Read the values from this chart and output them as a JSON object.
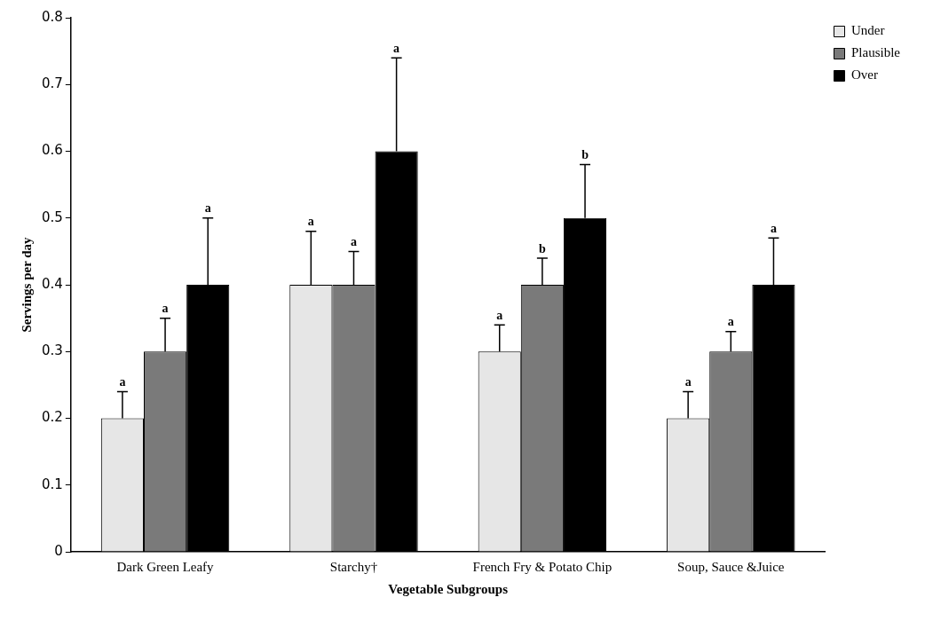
{
  "chart_data": {
    "type": "bar",
    "xlabel": "Vegetable Subgroups",
    "ylabel": "Servings per day",
    "categories": [
      "Dark Green Leafy",
      "Starchy†",
      "French Fry & Potato Chip",
      "Soup, Sauce &Juice"
    ],
    "series": [
      {
        "name": "Under",
        "color": "#e6e6e6",
        "values": [
          0.2,
          0.4,
          0.3,
          0.2
        ],
        "errors": [
          [
            0.2,
            0.24
          ],
          [
            0.4,
            0.48
          ],
          [
            0.3,
            0.34
          ],
          [
            0.2,
            0.24
          ]
        ]
      },
      {
        "name": "Plausible",
        "color": "#7a7a7a",
        "values": [
          0.3,
          0.4,
          0.4,
          0.3
        ],
        "errors": [
          [
            0.3,
            0.35
          ],
          [
            0.4,
            0.45
          ],
          [
            0.4,
            0.44
          ],
          [
            0.3,
            0.33
          ]
        ]
      },
      {
        "name": "Over",
        "color": "#000000",
        "values": [
          0.4,
          0.6,
          0.5,
          0.4
        ],
        "errors": [
          [
            0.4,
            0.5
          ],
          [
            0.6,
            0.74
          ],
          [
            0.5,
            0.58
          ],
          [
            0.4,
            0.47
          ]
        ]
      }
    ],
    "annotations": [
      "a",
      "a",
      "a",
      "a",
      "a",
      "a",
      "a",
      "b",
      "b",
      "a",
      "a",
      "a"
    ],
    "ylim": [
      0,
      0.8
    ],
    "yticks": [
      0,
      0.1,
      0.2,
      0.3,
      0.4,
      0.5,
      0.6,
      0.7,
      0.8
    ],
    "grid": false,
    "legend": "top right"
  }
}
